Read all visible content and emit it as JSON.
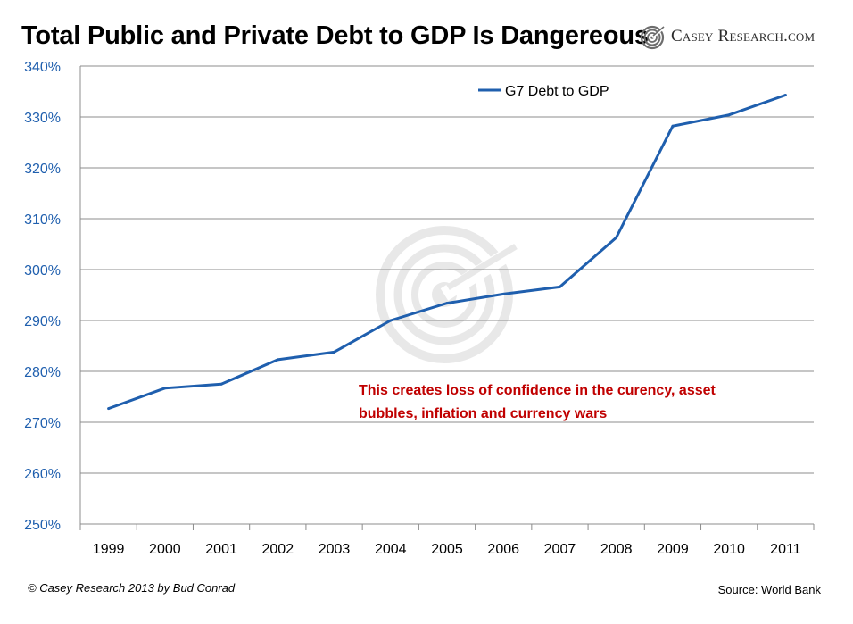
{
  "header": {
    "title": "Total Public and Private Debt to GDP Is Dangereous",
    "brand": "Casey Research.com"
  },
  "footer": {
    "copyright": "© Casey Research 2013 by Bud Conrad",
    "source": "Source: World Bank"
  },
  "colors": {
    "series": "#1f5fae",
    "axis_labels": "#1f5fae",
    "annotation": "#c00000",
    "grid": "#8c8c8c"
  },
  "chart_data": {
    "type": "line",
    "title": "Total Public and Private Debt to GDP Is Dangereous",
    "xlabel": "",
    "ylabel": "",
    "categories": [
      "1999",
      "2000",
      "2001",
      "2002",
      "2003",
      "2004",
      "2005",
      "2006",
      "2007",
      "2008",
      "2009",
      "2010",
      "2011"
    ],
    "series": [
      {
        "name": "G7 Debt to GDP",
        "values": [
          272.7,
          276.7,
          277.5,
          282.3,
          283.8,
          290.0,
          293.4,
          295.2,
          296.6,
          306.3,
          328.2,
          330.4,
          334.3
        ]
      }
    ],
    "ylim": [
      250,
      340
    ],
    "yticks": [
      250,
      260,
      270,
      280,
      290,
      300,
      310,
      320,
      330,
      340
    ],
    "y_format": "percent",
    "grid": "horizontal",
    "legend_position": "top-right",
    "annotation": {
      "lines": [
        "This creates loss of confidence in the curency, asset",
        "bubbles, inflation and currency wars"
      ]
    }
  }
}
